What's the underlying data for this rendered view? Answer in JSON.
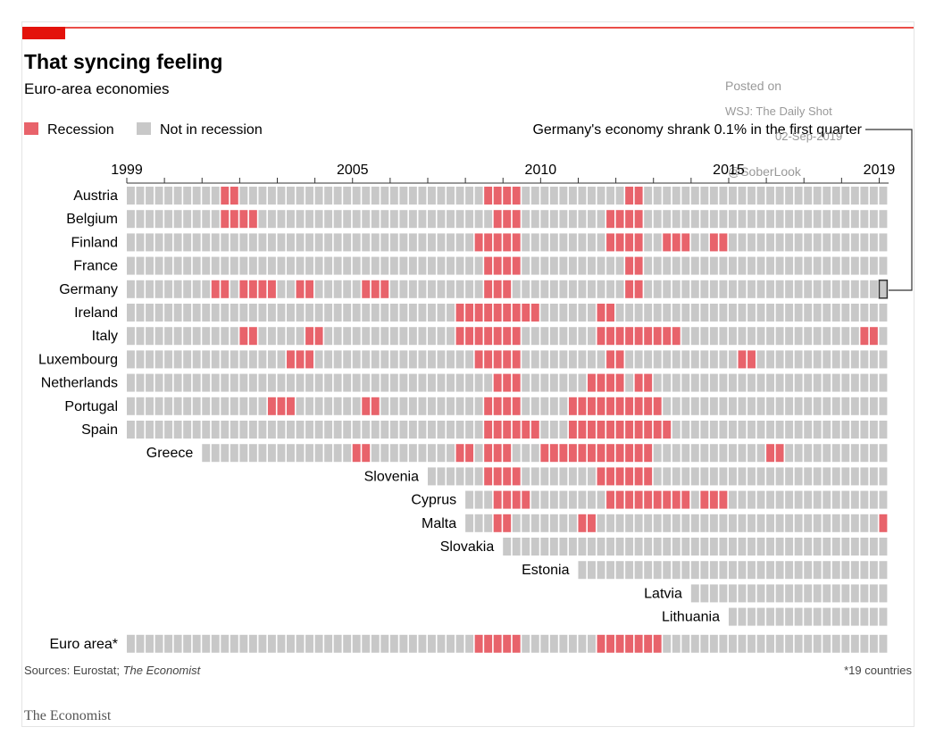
{
  "chart_data": {
    "type": "heatmap",
    "title": "That syncing feeling",
    "subtitle": "Euro-area economies",
    "legend": {
      "recession": {
        "label": "Recession",
        "color": "#e8636b"
      },
      "not_recession": {
        "label": "Not in recession",
        "color": "#c8c8c8"
      }
    },
    "time_axis": {
      "unit": "quarter",
      "start": "1999-Q1",
      "end": "2019-Q1",
      "tick_labels": [
        "1999",
        "2005",
        "2010",
        "2015",
        "2019"
      ]
    },
    "annotation": "Germany's economy shrank 0.1% in the first quarter",
    "annotation_target": {
      "country": "Germany",
      "quarter": "2019-Q1"
    },
    "rows": [
      {
        "country": "Austria",
        "start": "1999-Q1",
        "recessions": [
          [
            "2001-Q3",
            "2001-Q4"
          ],
          [
            "2008-Q3",
            "2009-Q2"
          ],
          [
            "2012-Q2",
            "2012-Q3"
          ]
        ]
      },
      {
        "country": "Belgium",
        "start": "1999-Q1",
        "recessions": [
          [
            "2001-Q3",
            "2002-Q2"
          ],
          [
            "2008-Q4",
            "2009-Q2"
          ],
          [
            "2011-Q4",
            "2012-Q3"
          ]
        ]
      },
      {
        "country": "Finland",
        "start": "1999-Q1",
        "recessions": [
          [
            "2008-Q2",
            "2009-Q2"
          ],
          [
            "2011-Q4",
            "2012-Q3"
          ],
          [
            "2013-Q2",
            "2013-Q4"
          ],
          [
            "2014-Q3",
            "2014-Q4"
          ]
        ]
      },
      {
        "country": "France",
        "start": "1999-Q1",
        "recessions": [
          [
            "2008-Q3",
            "2009-Q2"
          ],
          [
            "2012-Q2",
            "2012-Q3"
          ]
        ]
      },
      {
        "country": "Germany",
        "start": "1999-Q1",
        "recessions": [
          [
            "2001-Q2",
            "2001-Q3"
          ],
          [
            "2002-Q1",
            "2002-Q4"
          ],
          [
            "2003-Q3",
            "2003-Q4"
          ],
          [
            "2005-Q2",
            "2005-Q4"
          ],
          [
            "2008-Q3",
            "2009-Q1"
          ],
          [
            "2012-Q2",
            "2012-Q3"
          ]
        ]
      },
      {
        "country": "Ireland",
        "start": "1999-Q1",
        "recessions": [
          [
            "2007-Q4",
            "2008-Q1"
          ],
          [
            "2008-Q2",
            "2009-Q4"
          ],
          [
            "2011-Q3",
            "2011-Q4"
          ]
        ]
      },
      {
        "country": "Italy",
        "start": "1999-Q1",
        "recessions": [
          [
            "2002-Q1",
            "2002-Q2"
          ],
          [
            "2003-Q4",
            "2004-Q1"
          ],
          [
            "2007-Q4",
            "2008-Q2"
          ],
          [
            "2008-Q3",
            "2009-Q2"
          ],
          [
            "2011-Q3",
            "2013-Q3"
          ],
          [
            "2018-Q3",
            "2018-Q4"
          ]
        ]
      },
      {
        "country": "Luxembourg",
        "start": "1999-Q1",
        "recessions": [
          [
            "2003-Q2",
            "2003-Q4"
          ],
          [
            "2008-Q2",
            "2009-Q2"
          ],
          [
            "2011-Q4",
            "2012-Q1"
          ],
          [
            "2015-Q2",
            "2015-Q3"
          ]
        ]
      },
      {
        "country": "Netherlands",
        "start": "1999-Q1",
        "recessions": [
          [
            "2008-Q4",
            "2009-Q2"
          ],
          [
            "2011-Q2",
            "2012-Q1"
          ],
          [
            "2012-Q3",
            "2012-Q4"
          ]
        ]
      },
      {
        "country": "Portugal",
        "start": "1999-Q1",
        "recessions": [
          [
            "2002-Q4",
            "2003-Q2"
          ],
          [
            "2005-Q2",
            "2005-Q3"
          ],
          [
            "2008-Q3",
            "2009-Q2"
          ],
          [
            "2010-Q4",
            "2013-Q1"
          ]
        ]
      },
      {
        "country": "Spain",
        "start": "1999-Q1",
        "recessions": [
          [
            "2008-Q3",
            "2009-Q4"
          ],
          [
            "2010-Q4",
            "2013-Q2"
          ]
        ]
      },
      {
        "country": "Greece",
        "start": "2001-Q1",
        "recessions": [
          [
            "2005-Q1",
            "2005-Q2"
          ],
          [
            "2007-Q4",
            "2008-Q1"
          ],
          [
            "2008-Q3",
            "2009-Q1"
          ],
          [
            "2010-Q1",
            "2012-Q4"
          ],
          [
            "2016-Q1",
            "2016-Q2"
          ]
        ]
      },
      {
        "country": "Slovenia",
        "start": "2007-Q1",
        "recessions": [
          [
            "2008-Q3",
            "2009-Q2"
          ],
          [
            "2011-Q3",
            "2012-Q4"
          ]
        ]
      },
      {
        "country": "Cyprus",
        "start": "2008-Q1",
        "recessions": [
          [
            "2008-Q4",
            "2009-Q3"
          ],
          [
            "2011-Q4",
            "2013-Q4"
          ],
          [
            "2014-Q2",
            "2014-Q4"
          ]
        ]
      },
      {
        "country": "Malta",
        "start": "2008-Q1",
        "recessions": [
          [
            "2008-Q4",
            "2009-Q1"
          ],
          [
            "2011-Q1",
            "2011-Q2"
          ],
          [
            "2019-Q1",
            "2019-Q1"
          ]
        ]
      },
      {
        "country": "Slovakia",
        "start": "2009-Q1",
        "recessions": []
      },
      {
        "country": "Estonia",
        "start": "2011-Q1",
        "recessions": []
      },
      {
        "country": "Latvia",
        "start": "2014-Q1",
        "recessions": []
      },
      {
        "country": "Lithuania",
        "start": "2015-Q1",
        "recessions": []
      },
      {
        "country": "Euro area*",
        "start": "1999-Q1",
        "recessions": [
          [
            "2008-Q2",
            "2009-Q2"
          ],
          [
            "2011-Q3",
            "2013-Q1"
          ]
        ]
      }
    ],
    "highlight_cell": {
      "country": "Germany",
      "quarter": "2019-Q1"
    }
  },
  "footer": {
    "source_prefix": "Sources: Eurostat; ",
    "source_italic": "The Economist",
    "footnote": "*19 countries",
    "brand": "The Economist"
  },
  "watermark": {
    "line1": "Posted on",
    "line2": "WSJ: The Daily Shot",
    "line3": "02-Sep-2019",
    "line4": "@SoberLook"
  },
  "colors": {
    "accent": "#e3120b",
    "recession": "#e8636b",
    "normal": "#c8c8c8"
  }
}
